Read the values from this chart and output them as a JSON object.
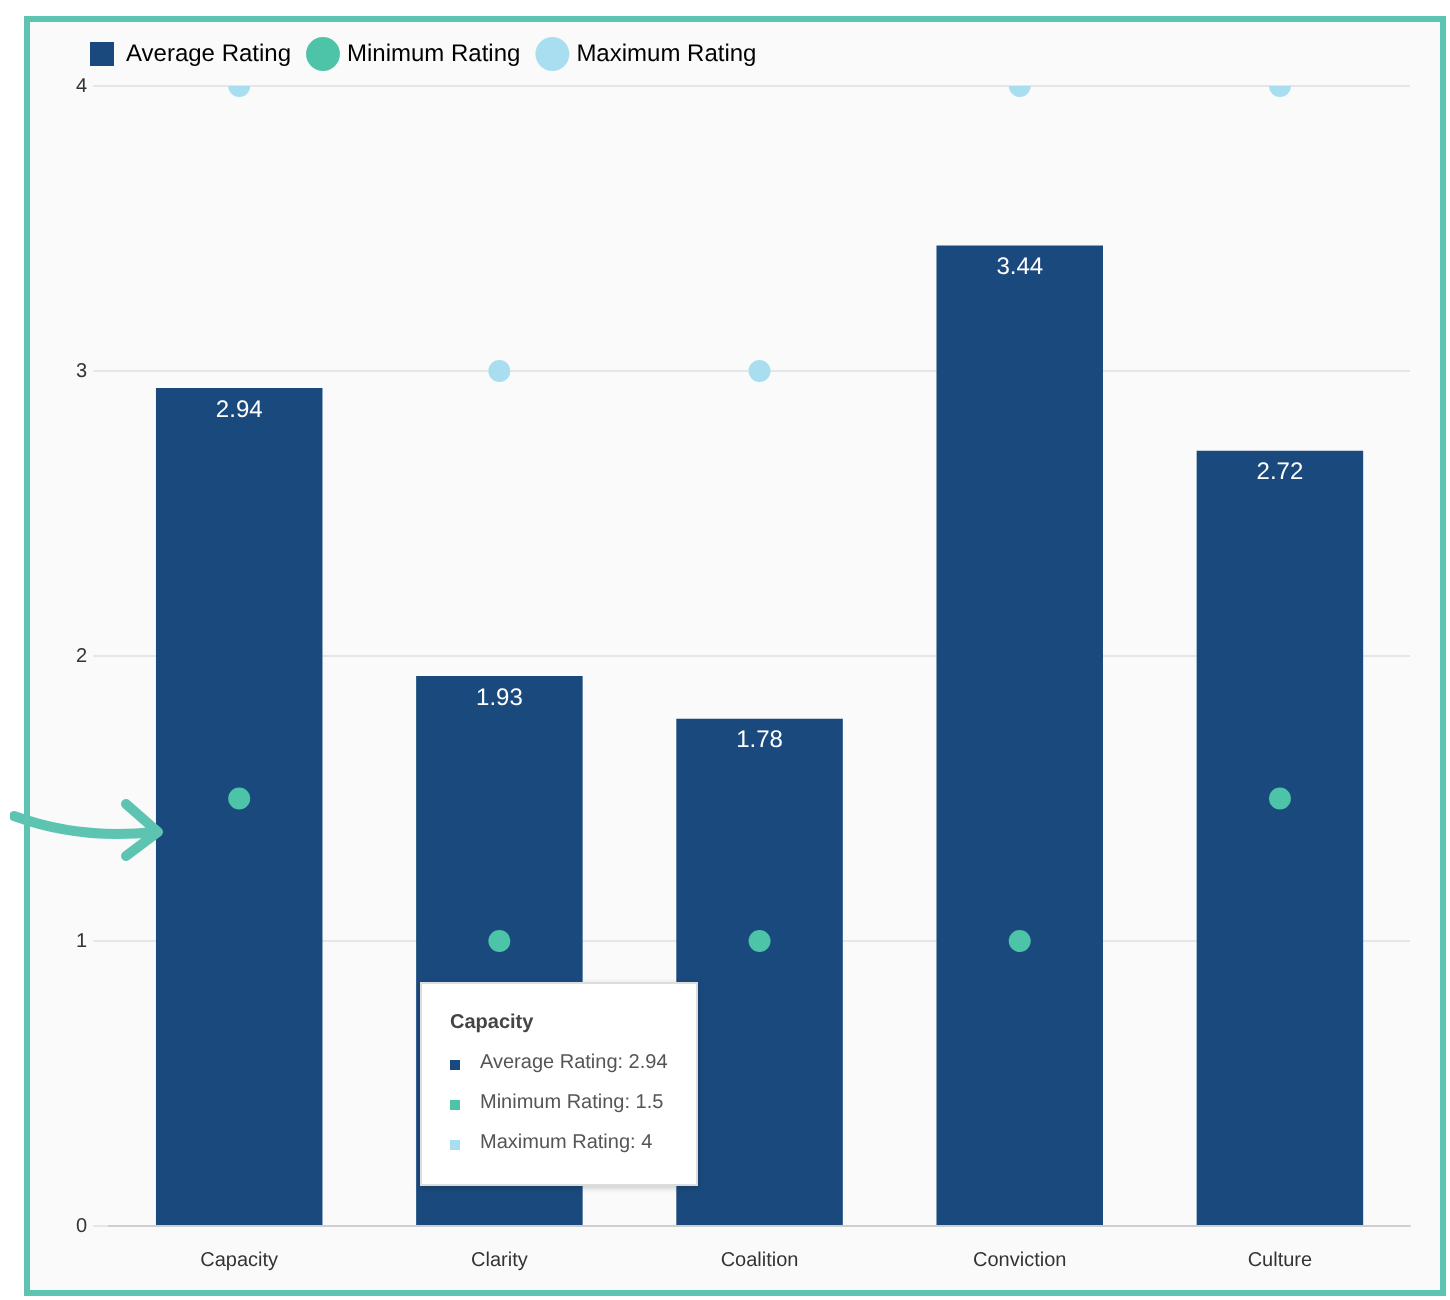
{
  "chart_data": {
    "type": "bar",
    "categories": [
      "Capacity",
      "Clarity",
      "Coalition",
      "Conviction",
      "Culture"
    ],
    "series": [
      {
        "name": "Average Rating",
        "color": "#1a4a7d",
        "values": [
          2.94,
          1.93,
          1.78,
          3.44,
          2.72
        ],
        "value_labels": [
          "2.94",
          "1.93",
          "1.78",
          "3.44",
          "2.72"
        ]
      },
      {
        "name": "Minimum Rating",
        "type": "scatter",
        "color": "#4dc4a8",
        "values": [
          1.5,
          1,
          1,
          1,
          1.5
        ]
      },
      {
        "name": "Maximum Rating",
        "type": "scatter",
        "color": "#a8def0",
        "values": [
          4,
          3,
          3,
          4,
          4
        ]
      }
    ],
    "ylim": [
      0,
      4
    ],
    "yticks": [
      0,
      1,
      2,
      3,
      4
    ],
    "grid": "y",
    "legend": "top left",
    "marker": "circle",
    "annotations": [
      "Capacity",
      "Average Rating: 2.94",
      "Minimum Rating: 1.5",
      "Maximum Rating: 4"
    ]
  }
}
